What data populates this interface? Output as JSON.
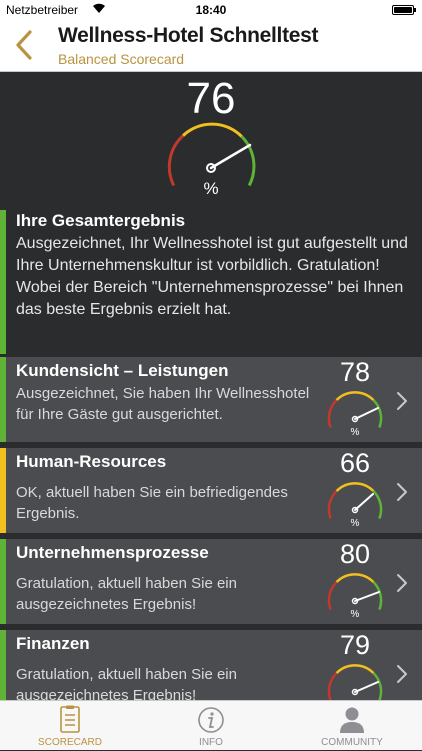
{
  "status_bar": {
    "carrier": "Netzbetreiber",
    "time": "18:40"
  },
  "nav": {
    "title": "Wellness-Hotel Schnelltest",
    "subtitle": "Balanced Scorecard"
  },
  "overall": {
    "score": "76",
    "unit": "%",
    "heading": "Ihre Gesamtergebnis",
    "text": "Ausgezeichnet, Ihr Wellnesshotel ist gut aufgestellt und Ihre Unternehmenskultur ist vorbildlich. Gratulation! Wobei der Bereich \"Unternehmensprozesse\" bei Ihnen das beste Ergebnis erzielt hat.",
    "gauge_value": 76,
    "status_color": "#5fb336"
  },
  "categories": [
    {
      "name": "Kundensicht – Leistungen",
      "description": "Ausgezeichnet, Sie haben Ihr Wellnesshotel für Ihre Gäste gut ausgerichtet.",
      "score": "78",
      "unit": "%",
      "gauge_value": 78,
      "status_color": "#5fb336"
    },
    {
      "name": "Human-Resources",
      "description": "OK, aktuell haben Sie ein befriedigendes Ergebnis.",
      "score": "66",
      "unit": "%",
      "gauge_value": 66,
      "status_color": "#f2c01e"
    },
    {
      "name": "Unternehmensprozesse",
      "description": "Gratulation, aktuell haben Sie ein ausgezeichnetes Ergebnis!",
      "score": "80",
      "unit": "%",
      "gauge_value": 80,
      "status_color": "#5fb336"
    },
    {
      "name": "Finanzen",
      "description": "Gratulation, aktuell haben Sie ein ausgezeichnetes Ergebnis!",
      "score": "79",
      "unit": "%",
      "gauge_value": 79,
      "status_color": "#5fb336"
    }
  ],
  "tabs": [
    {
      "label": "SCORECARD",
      "icon": "scorecard-icon",
      "active": true
    },
    {
      "label": "INFO",
      "icon": "info-icon",
      "active": false
    },
    {
      "label": "COMMUNITY",
      "icon": "person-icon",
      "active": false
    }
  ],
  "colors": {
    "accent": "#b9933f",
    "good": "#5fb336",
    "ok": "#f2c01e",
    "bad": "#c0392b"
  }
}
